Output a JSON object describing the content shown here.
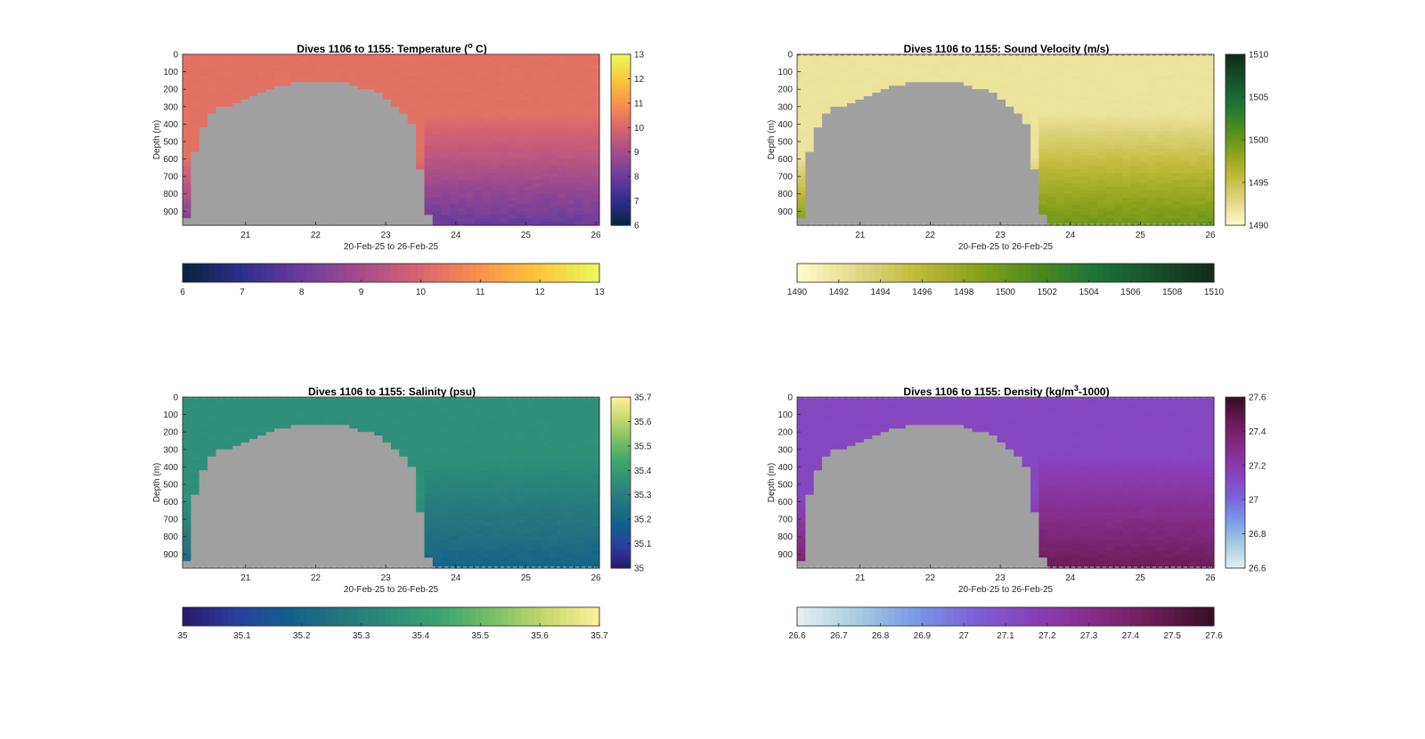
{
  "figure": {
    "panels": [
      {
        "id": "temperature",
        "title_main": "Dives 1106 to 1155: Temperature (",
        "title_sup": "o",
        "title_tail": " C)",
        "ylabel": "Depth (m)",
        "xlabel": "20-Feb-25 to 26-Feb-25",
        "colormap": "thermal",
        "cbar_ticks": [
          "6",
          "7",
          "8",
          "9",
          "10",
          "11",
          "12",
          "13"
        ],
        "hcbar_ticks": [
          "6",
          "7",
          "8",
          "9",
          "10",
          "11",
          "12",
          "13"
        ]
      },
      {
        "id": "sound-velocity",
        "title_main": "Dives 1106 to 1155: Sound Velocity (m/s)",
        "title_sup": "",
        "title_tail": "",
        "ylabel": "Depth (m)",
        "xlabel": "20-Feb-25 to 26-Feb-25",
        "colormap": "speed",
        "cbar_ticks": [
          "1490",
          "1495",
          "1500",
          "1505",
          "1510"
        ],
        "hcbar_ticks": [
          "1490",
          "1492",
          "1494",
          "1496",
          "1498",
          "1500",
          "1502",
          "1504",
          "1506",
          "1508",
          "1510"
        ]
      },
      {
        "id": "salinity",
        "title_main": "Dives 1106 to 1155: Salinity (psu)",
        "title_sup": "",
        "title_tail": "",
        "ylabel": "Depth (m)",
        "xlabel": "20-Feb-25 to 26-Feb-25",
        "colormap": "haline",
        "cbar_ticks": [
          "35",
          "35.1",
          "35.2",
          "35.3",
          "35.4",
          "35.5",
          "35.6",
          "35.7"
        ],
        "hcbar_ticks": [
          "35",
          "35.1",
          "35.2",
          "35.3",
          "35.4",
          "35.5",
          "35.6",
          "35.7"
        ]
      },
      {
        "id": "density",
        "title_main": "Dives 1106 to 1155: Density (kg/m",
        "title_sup": "3",
        "title_tail": "-1000)",
        "ylabel": "Depth (m)",
        "xlabel": "20-Feb-25 to 26-Feb-25",
        "colormap": "dense",
        "cbar_ticks": [
          "26.6",
          "26.8",
          "27",
          "27.2",
          "27.4",
          "27.6"
        ],
        "hcbar_ticks": [
          "26.6",
          "26.7",
          "26.8",
          "26.9",
          "27",
          "27.1",
          "27.2",
          "27.3",
          "27.4",
          "27.5",
          "27.6"
        ]
      }
    ]
  },
  "chart_data": [
    {
      "type": "heatmap",
      "title": "Dives 1106 to 1155: Temperature (o C)",
      "xlabel": "20-Feb-25 to 26-Feb-25",
      "ylabel": "Depth (m)",
      "x_ticks": [
        "21",
        "22",
        "23",
        "24",
        "25",
        "26"
      ],
      "y_ticks": [
        "0",
        "100",
        "200",
        "300",
        "400",
        "500",
        "600",
        "700",
        "800",
        "900"
      ],
      "xlim": [
        20.1,
        26.05
      ],
      "ylim": [
        0,
        980
      ],
      "y_reversed": true,
      "clim": [
        6,
        13
      ],
      "surface_value": 10.3,
      "deep_value": 8.0,
      "colormap_colors": [
        "#04253a",
        "#2f2d8e",
        "#6a3c9c",
        "#a54d8c",
        "#d9646f",
        "#f9924a",
        "#fbc73a",
        "#e8fa5b"
      ],
      "seafloor_color": "#a0a0a0",
      "seafloor_profile_x": [
        20.15,
        20.25,
        20.4,
        20.55,
        20.75,
        21.0,
        21.3,
        21.6,
        21.9,
        22.2,
        22.5,
        22.8,
        23.0,
        23.2,
        23.4,
        23.55,
        23.65
      ],
      "seafloor_profile_depth": [
        980,
        600,
        410,
        310,
        300,
        260,
        200,
        170,
        155,
        160,
        170,
        210,
        250,
        320,
        420,
        820,
        980
      ]
    },
    {
      "type": "heatmap",
      "title": "Dives 1106 to 1155: Sound Velocity (m/s)",
      "xlabel": "20-Feb-25 to 26-Feb-25",
      "ylabel": "Depth (m)",
      "x_ticks": [
        "21",
        "22",
        "23",
        "24",
        "25",
        "26"
      ],
      "y_ticks": [
        "0",
        "100",
        "200",
        "300",
        "400",
        "500",
        "600",
        "700",
        "800",
        "900"
      ],
      "xlim": [
        20.1,
        26.05
      ],
      "ylim": [
        0,
        980
      ],
      "y_reversed": true,
      "clim": [
        1490,
        1510
      ],
      "surface_value": 1492,
      "deep_value": 1500,
      "colormap_colors": [
        "#fffdcd",
        "#e3d788",
        "#c1bb3a",
        "#8aa21b",
        "#4d8b1e",
        "#1e7337",
        "#17502d",
        "#112b1b"
      ],
      "seafloor_color": "#a0a0a0",
      "seafloor_profile_x": [
        20.15,
        20.25,
        20.4,
        20.55,
        20.75,
        21.0,
        21.3,
        21.6,
        21.9,
        22.2,
        22.5,
        22.8,
        23.0,
        23.2,
        23.4,
        23.55,
        23.65
      ],
      "seafloor_profile_depth": [
        980,
        600,
        410,
        310,
        300,
        260,
        200,
        170,
        155,
        160,
        170,
        210,
        250,
        320,
        420,
        820,
        980
      ]
    },
    {
      "type": "heatmap",
      "title": "Dives 1106 to 1155: Salinity (psu)",
      "xlabel": "20-Feb-25 to 26-Feb-25",
      "ylabel": "Depth (m)",
      "x_ticks": [
        "21",
        "22",
        "23",
        "24",
        "25",
        "26"
      ],
      "y_ticks": [
        "0",
        "100",
        "200",
        "300",
        "400",
        "500",
        "600",
        "700",
        "800",
        "900"
      ],
      "xlim": [
        20.1,
        26.05
      ],
      "ylim": [
        0,
        980
      ],
      "y_reversed": true,
      "clim": [
        35,
        35.7
      ],
      "surface_value": 35.36,
      "deep_value": 35.2,
      "colormap_colors": [
        "#29186b",
        "#2a3d9f",
        "#125e8c",
        "#23747f",
        "#2d8d7a",
        "#3ba570",
        "#79c165",
        "#c8d96b",
        "#fdef9a"
      ],
      "seafloor_color": "#a0a0a0",
      "seafloor_profile_x": [
        20.15,
        20.25,
        20.4,
        20.55,
        20.75,
        21.0,
        21.3,
        21.6,
        21.9,
        22.2,
        22.5,
        22.8,
        23.0,
        23.2,
        23.4,
        23.55,
        23.65
      ],
      "seafloor_profile_depth": [
        980,
        600,
        410,
        310,
        300,
        260,
        200,
        170,
        155,
        160,
        170,
        210,
        250,
        320,
        420,
        820,
        980
      ]
    },
    {
      "type": "heatmap",
      "title": "Dives 1106 to 1155: Density (kg/m3-1000)",
      "xlabel": "20-Feb-25 to 26-Feb-25",
      "ylabel": "Depth (m)",
      "x_ticks": [
        "21",
        "22",
        "23",
        "24",
        "25",
        "26"
      ],
      "y_ticks": [
        "0",
        "100",
        "200",
        "300",
        "400",
        "500",
        "600",
        "700",
        "800",
        "900"
      ],
      "xlim": [
        20.1,
        26.05
      ],
      "ylim": [
        0,
        980
      ],
      "y_reversed": true,
      "clim": [
        26.6,
        27.6
      ],
      "surface_value": 27.13,
      "deep_value": 27.45,
      "colormap_colors": [
        "#e6f0f0",
        "#a6cde0",
        "#7799e6",
        "#7c5fd8",
        "#8a3db6",
        "#842c87",
        "#6b1c56",
        "#360e24"
      ],
      "seafloor_color": "#a0a0a0",
      "seafloor_profile_x": [
        20.15,
        20.25,
        20.4,
        20.55,
        20.75,
        21.0,
        21.3,
        21.6,
        21.9,
        22.2,
        22.5,
        22.8,
        23.0,
        23.2,
        23.4,
        23.55,
        23.65
      ],
      "seafloor_profile_depth": [
        980,
        600,
        410,
        310,
        300,
        260,
        200,
        170,
        155,
        160,
        170,
        210,
        250,
        320,
        420,
        820,
        980
      ]
    }
  ]
}
